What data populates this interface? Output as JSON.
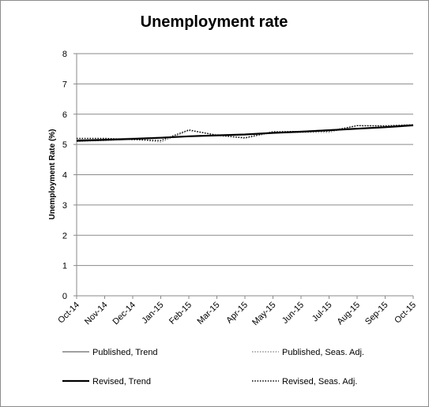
{
  "chart_data": {
    "type": "line",
    "title": "Unemployment rate",
    "xlabel": "",
    "ylabel": "Unemployment Rate (%)",
    "ylim": [
      0,
      8
    ],
    "yticks": [
      "0",
      "1",
      "2",
      "3",
      "4",
      "5",
      "6",
      "7",
      "8"
    ],
    "categories": [
      "Oct-14",
      "Nov-14",
      "Dec-14",
      "Jan-15",
      "Feb-15",
      "Mar-15",
      "Apr-15",
      "May-15",
      "Jun-15",
      "Jul-15",
      "Aug-15",
      "Sep-15",
      "Oct-15"
    ],
    "grid": true,
    "legend_position": "bottom",
    "series": [
      {
        "name": "Published, Trend",
        "color": "#808080",
        "dash": "solid",
        "values": [
          5.15,
          5.17,
          5.2,
          5.23,
          5.27,
          5.3,
          5.33,
          5.38,
          5.43,
          5.48,
          5.53,
          5.58,
          5.63
        ]
      },
      {
        "name": "Published, Seas. Adj.",
        "color": "#909090",
        "dash": "dotted",
        "values": [
          5.1,
          5.13,
          5.18,
          5.08,
          5.46,
          5.32,
          5.2,
          5.4,
          5.4,
          5.4,
          5.62,
          5.62,
          5.65
        ]
      },
      {
        "name": "Revised, Trend",
        "color": "#000000",
        "dash": "solid",
        "values": [
          5.12,
          5.15,
          5.18,
          5.22,
          5.27,
          5.3,
          5.33,
          5.38,
          5.42,
          5.47,
          5.52,
          5.57,
          5.63
        ]
      },
      {
        "name": "Revised, Seas. Adj.",
        "color": "#000000",
        "dash": "dotted",
        "values": [
          5.2,
          5.2,
          5.16,
          5.13,
          5.48,
          5.3,
          5.22,
          5.42,
          5.43,
          5.44,
          5.62,
          5.61,
          5.65
        ]
      }
    ]
  }
}
